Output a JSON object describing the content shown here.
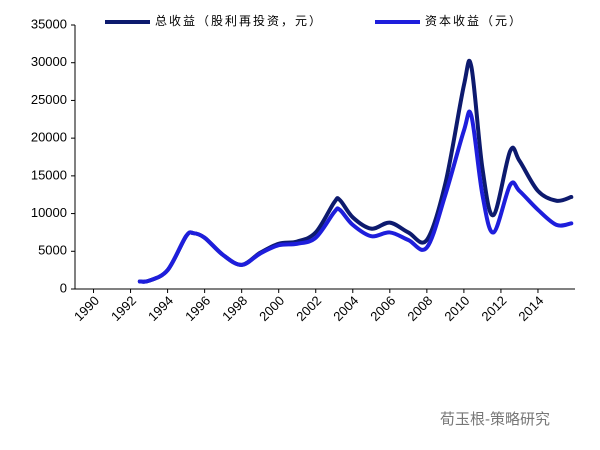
{
  "chart_data": {
    "type": "line",
    "series": [
      {
        "name": "总收益（股利再投资，元）",
        "color": "#0d1a6e",
        "x": [
          1992.5,
          1993,
          1994,
          1995,
          1995.4,
          1996,
          1997,
          1998,
          1999,
          2000,
          2001,
          2002,
          2003,
          2003.3,
          2004,
          2005,
          2006,
          2007,
          2008,
          2009,
          2010,
          2010.4,
          2011,
          2011.6,
          2012.5,
          2013,
          2014,
          2015,
          2015.8
        ],
        "values": [
          1000,
          1100,
          2500,
          7000,
          7400,
          6800,
          4500,
          3200,
          4800,
          6000,
          6300,
          7500,
          11500,
          11800,
          9500,
          8000,
          8800,
          7500,
          6500,
          14000,
          27000,
          29500,
          16000,
          9800,
          18300,
          17000,
          13000,
          11700,
          12200
        ]
      },
      {
        "name": "资本收益（元）",
        "color": "#1e1edc",
        "x": [
          1992.5,
          1993,
          1994,
          1995,
          1995.4,
          1996,
          1997,
          1998,
          1999,
          2000,
          2001,
          2002,
          2003,
          2003.3,
          2004,
          2005,
          2006,
          2007,
          2008,
          2009,
          2010,
          2010.4,
          2011,
          2011.6,
          2012.5,
          2013,
          2014,
          2015,
          2015.8
        ],
        "values": [
          1000,
          1100,
          2500,
          7000,
          7400,
          6800,
          4500,
          3200,
          4700,
          5800,
          6000,
          6800,
          10200,
          10500,
          8500,
          7000,
          7500,
          6500,
          5500,
          12500,
          21000,
          23000,
          12500,
          7500,
          13800,
          13000,
          10500,
          8500,
          8700
        ]
      }
    ],
    "xlim": [
      1989,
      2016
    ],
    "xticks": [
      1990,
      1992,
      1994,
      1996,
      1998,
      2000,
      2002,
      2004,
      2006,
      2008,
      2010,
      2012,
      2014
    ],
    "ylim": [
      0,
      35000
    ],
    "yticks": [
      0,
      5000,
      10000,
      15000,
      20000,
      25000,
      30000,
      35000
    ],
    "legend": "top"
  },
  "watermark": "荀玉根-策略研究"
}
